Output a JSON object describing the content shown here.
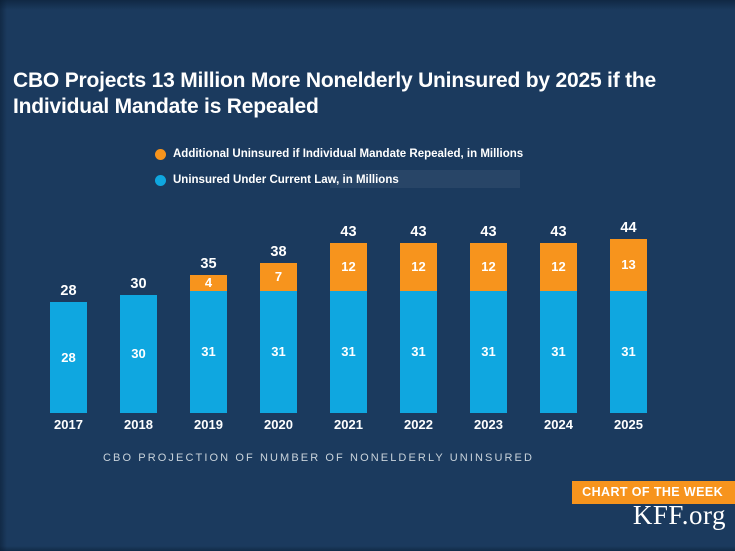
{
  "title": "CBO Projects 13 Million More Nonelderly Uninsured by 2025 if the Individual Mandate is Repealed",
  "legend": [
    {
      "label": "Additional Uninsured if Individual Mandate Repealed, in Millions",
      "color": "#F7941D"
    },
    {
      "label": "Uninsured Under Current Law, in Millions",
      "color": "#0FA7E0"
    }
  ],
  "chart_data": {
    "type": "bar",
    "stacked": true,
    "categories": [
      "2017",
      "2018",
      "2019",
      "2020",
      "2021",
      "2022",
      "2023",
      "2024",
      "2025"
    ],
    "series": [
      {
        "name": "Uninsured Under Current Law, in Millions",
        "color": "#0FA7E0",
        "values": [
          28,
          30,
          31,
          31,
          31,
          31,
          31,
          31,
          31
        ]
      },
      {
        "name": "Additional Uninsured if Individual Mandate Repealed, in Millions",
        "color": "#F7941D",
        "values": [
          0,
          0,
          4,
          7,
          12,
          12,
          12,
          12,
          13
        ]
      }
    ],
    "totals": [
      28,
      30,
      35,
      38,
      43,
      43,
      43,
      43,
      44
    ],
    "xlabel": "CBO PROJECTION OF NUMBER OF NONELDERLY UNINSURED",
    "ylim": [
      0,
      50
    ],
    "grid": false,
    "legend_position": "top",
    "value_labels": "inside-and-total"
  },
  "footer": {
    "badge_label": "CHART OF THE WEEK",
    "badge_color": "#F7941D",
    "brand": "KFF.org"
  },
  "colors": {
    "background": "#1B3A5E",
    "title_text": "#FFFFFF",
    "caption_text": "#C9D3DB"
  }
}
